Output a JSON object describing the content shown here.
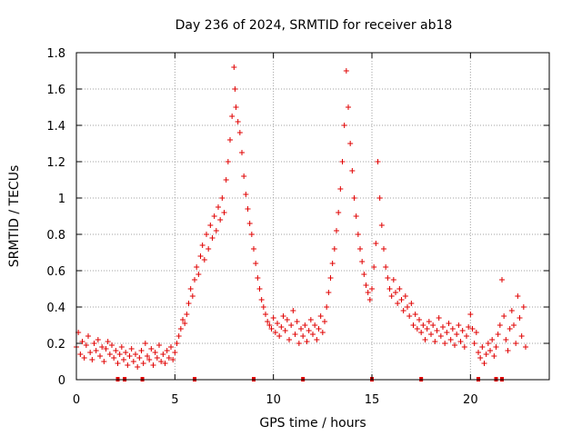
{
  "chart_data": {
    "type": "scatter",
    "title": "Day 236 of 2024, SRMTID for receiver ab18",
    "xlabel": "GPS time / hours",
    "ylabel": "SRMTID / TECUs",
    "xlim": [
      0,
      24
    ],
    "ylim": [
      0,
      1.8
    ],
    "xticks": [
      0,
      5,
      10,
      15,
      20
    ],
    "xtick_labels": [
      "0",
      "5",
      "10",
      "15",
      "20"
    ],
    "yticks": [
      0,
      0.2,
      0.4,
      0.6,
      0.8,
      1,
      1.2,
      1.4,
      1.6,
      1.8
    ],
    "ytick_labels": [
      "0",
      "0.2",
      "0.4",
      "0.6",
      "0.8",
      "1",
      "1.2",
      "1.4",
      "1.6",
      "1.8"
    ],
    "grid": true,
    "marker": "+",
    "color": "#e00000",
    "series": [
      {
        "name": "SRMTID",
        "points": [
          [
            0.0,
            0.18
          ],
          [
            0.1,
            0.26
          ],
          [
            0.2,
            0.14
          ],
          [
            0.3,
            0.21
          ],
          [
            0.4,
            0.12
          ],
          [
            0.5,
            0.19
          ],
          [
            0.6,
            0.24
          ],
          [
            0.7,
            0.15
          ],
          [
            0.8,
            0.11
          ],
          [
            0.9,
            0.2
          ],
          [
            1.0,
            0.16
          ],
          [
            1.1,
            0.22
          ],
          [
            1.2,
            0.13
          ],
          [
            1.3,
            0.18
          ],
          [
            1.4,
            0.1
          ],
          [
            1.5,
            0.17
          ],
          [
            1.6,
            0.21
          ],
          [
            1.7,
            0.14
          ],
          [
            1.8,
            0.19
          ],
          [
            1.9,
            0.12
          ],
          [
            2.0,
            0.16
          ],
          [
            2.1,
            0.09
          ],
          [
            2.2,
            0.14
          ],
          [
            2.3,
            0.18
          ],
          [
            2.4,
            0.11
          ],
          [
            2.5,
            0.15
          ],
          [
            2.6,
            0.08
          ],
          [
            2.7,
            0.13
          ],
          [
            2.8,
            0.17
          ],
          [
            2.9,
            0.1
          ],
          [
            3.0,
            0.14
          ],
          [
            3.1,
            0.07
          ],
          [
            3.2,
            0.12
          ],
          [
            3.3,
            0.16
          ],
          [
            3.4,
            0.09
          ],
          [
            3.5,
            0.2
          ],
          [
            3.6,
            0.13
          ],
          [
            3.7,
            0.11
          ],
          [
            3.8,
            0.17
          ],
          [
            3.9,
            0.08
          ],
          [
            4.0,
            0.15
          ],
          [
            4.1,
            0.12
          ],
          [
            4.2,
            0.19
          ],
          [
            4.3,
            0.1
          ],
          [
            4.4,
            0.14
          ],
          [
            4.5,
            0.09
          ],
          [
            4.6,
            0.16
          ],
          [
            4.7,
            0.12
          ],
          [
            4.8,
            0.18
          ],
          [
            4.9,
            0.11
          ],
          [
            5.0,
            0.15
          ],
          [
            5.1,
            0.2
          ],
          [
            5.2,
            0.24
          ],
          [
            5.3,
            0.28
          ],
          [
            5.4,
            0.33
          ],
          [
            5.5,
            0.31
          ],
          [
            5.6,
            0.36
          ],
          [
            5.7,
            0.42
          ],
          [
            5.8,
            0.5
          ],
          [
            5.9,
            0.46
          ],
          [
            6.0,
            0.55
          ],
          [
            6.1,
            0.62
          ],
          [
            6.2,
            0.58
          ],
          [
            6.3,
            0.68
          ],
          [
            6.4,
            0.74
          ],
          [
            6.5,
            0.66
          ],
          [
            6.6,
            0.8
          ],
          [
            6.7,
            0.72
          ],
          [
            6.8,
            0.85
          ],
          [
            6.9,
            0.78
          ],
          [
            7.0,
            0.9
          ],
          [
            7.1,
            0.82
          ],
          [
            7.2,
            0.95
          ],
          [
            7.3,
            0.88
          ],
          [
            7.4,
            1.0
          ],
          [
            7.5,
            0.92
          ],
          [
            7.6,
            1.1
          ],
          [
            7.7,
            1.2
          ],
          [
            7.8,
            1.32
          ],
          [
            7.9,
            1.45
          ],
          [
            8.0,
            1.72
          ],
          [
            8.05,
            1.6
          ],
          [
            8.1,
            1.5
          ],
          [
            8.2,
            1.42
          ],
          [
            8.3,
            1.36
          ],
          [
            8.4,
            1.25
          ],
          [
            8.5,
            1.12
          ],
          [
            8.6,
            1.02
          ],
          [
            8.7,
            0.94
          ],
          [
            8.8,
            0.86
          ],
          [
            8.9,
            0.8
          ],
          [
            9.0,
            0.72
          ],
          [
            9.1,
            0.64
          ],
          [
            9.2,
            0.56
          ],
          [
            9.3,
            0.5
          ],
          [
            9.4,
            0.44
          ],
          [
            9.5,
            0.4
          ],
          [
            9.6,
            0.36
          ],
          [
            9.7,
            0.32
          ],
          [
            9.8,
            0.3
          ],
          [
            9.9,
            0.28
          ],
          [
            10.0,
            0.34
          ],
          [
            10.1,
            0.26
          ],
          [
            10.2,
            0.31
          ],
          [
            10.3,
            0.24
          ],
          [
            10.4,
            0.29
          ],
          [
            10.5,
            0.35
          ],
          [
            10.6,
            0.27
          ],
          [
            10.7,
            0.33
          ],
          [
            10.8,
            0.22
          ],
          [
            10.9,
            0.3
          ],
          [
            11.0,
            0.38
          ],
          [
            11.1,
            0.25
          ],
          [
            11.2,
            0.32
          ],
          [
            11.3,
            0.2
          ],
          [
            11.4,
            0.28
          ],
          [
            11.5,
            0.24
          ],
          [
            11.6,
            0.3
          ],
          [
            11.7,
            0.21
          ],
          [
            11.8,
            0.27
          ],
          [
            11.9,
            0.33
          ],
          [
            12.0,
            0.25
          ],
          [
            12.1,
            0.3
          ],
          [
            12.2,
            0.22
          ],
          [
            12.3,
            0.28
          ],
          [
            12.4,
            0.35
          ],
          [
            12.5,
            0.26
          ],
          [
            12.6,
            0.32
          ],
          [
            12.7,
            0.4
          ],
          [
            12.8,
            0.48
          ],
          [
            12.9,
            0.56
          ],
          [
            13.0,
            0.64
          ],
          [
            13.1,
            0.72
          ],
          [
            13.2,
            0.82
          ],
          [
            13.3,
            0.92
          ],
          [
            13.4,
            1.05
          ],
          [
            13.5,
            1.2
          ],
          [
            13.6,
            1.4
          ],
          [
            13.7,
            1.7
          ],
          [
            13.8,
            1.5
          ],
          [
            13.9,
            1.3
          ],
          [
            14.0,
            1.15
          ],
          [
            14.1,
            1.0
          ],
          [
            14.2,
            0.9
          ],
          [
            14.3,
            0.8
          ],
          [
            14.4,
            0.72
          ],
          [
            14.5,
            0.65
          ],
          [
            14.6,
            0.58
          ],
          [
            14.7,
            0.52
          ],
          [
            14.8,
            0.48
          ],
          [
            14.9,
            0.44
          ],
          [
            15.0,
            0.5
          ],
          [
            15.1,
            0.62
          ],
          [
            15.2,
            0.75
          ],
          [
            15.3,
            1.2
          ],
          [
            15.4,
            1.0
          ],
          [
            15.5,
            0.85
          ],
          [
            15.6,
            0.72
          ],
          [
            15.7,
            0.62
          ],
          [
            15.8,
            0.56
          ],
          [
            15.9,
            0.5
          ],
          [
            16.0,
            0.46
          ],
          [
            16.1,
            0.55
          ],
          [
            16.2,
            0.48
          ],
          [
            16.3,
            0.42
          ],
          [
            16.4,
            0.5
          ],
          [
            16.5,
            0.44
          ],
          [
            16.6,
            0.38
          ],
          [
            16.7,
            0.46
          ],
          [
            16.8,
            0.4
          ],
          [
            16.9,
            0.35
          ],
          [
            17.0,
            0.42
          ],
          [
            17.1,
            0.3
          ],
          [
            17.2,
            0.36
          ],
          [
            17.3,
            0.28
          ],
          [
            17.4,
            0.33
          ],
          [
            17.5,
            0.26
          ],
          [
            17.6,
            0.3
          ],
          [
            17.7,
            0.22
          ],
          [
            17.8,
            0.28
          ],
          [
            17.9,
            0.32
          ],
          [
            18.0,
            0.25
          ],
          [
            18.1,
            0.3
          ],
          [
            18.2,
            0.21
          ],
          [
            18.3,
            0.27
          ],
          [
            18.4,
            0.34
          ],
          [
            18.5,
            0.24
          ],
          [
            18.6,
            0.29
          ],
          [
            18.7,
            0.2
          ],
          [
            18.8,
            0.26
          ],
          [
            18.9,
            0.31
          ],
          [
            19.0,
            0.22
          ],
          [
            19.1,
            0.28
          ],
          [
            19.2,
            0.19
          ],
          [
            19.3,
            0.25
          ],
          [
            19.4,
            0.3
          ],
          [
            19.5,
            0.21
          ],
          [
            19.6,
            0.27
          ],
          [
            19.7,
            0.18
          ],
          [
            19.8,
            0.24
          ],
          [
            19.9,
            0.29
          ],
          [
            20.0,
            0.36
          ],
          [
            20.1,
            0.28
          ],
          [
            20.2,
            0.2
          ],
          [
            20.3,
            0.26
          ],
          [
            20.4,
            0.15
          ],
          [
            20.5,
            0.12
          ],
          [
            20.6,
            0.18
          ],
          [
            20.7,
            0.09
          ],
          [
            20.8,
            0.14
          ],
          [
            20.9,
            0.2
          ],
          [
            21.0,
            0.16
          ],
          [
            21.1,
            0.22
          ],
          [
            21.2,
            0.13
          ],
          [
            21.3,
            0.18
          ],
          [
            21.4,
            0.25
          ],
          [
            21.5,
            0.3
          ],
          [
            21.6,
            0.55
          ],
          [
            21.7,
            0.35
          ],
          [
            21.8,
            0.22
          ],
          [
            21.9,
            0.16
          ],
          [
            22.0,
            0.28
          ],
          [
            22.1,
            0.38
          ],
          [
            22.2,
            0.3
          ],
          [
            22.3,
            0.2
          ],
          [
            22.4,
            0.46
          ],
          [
            22.5,
            0.34
          ],
          [
            22.6,
            0.24
          ],
          [
            22.7,
            0.4
          ],
          [
            22.8,
            0.18
          ]
        ],
        "zero_points": [
          2.1,
          2.45,
          3.35,
          6.0,
          9.0,
          11.5,
          15.0,
          17.5,
          20.4,
          21.3,
          21.6
        ]
      }
    ]
  }
}
